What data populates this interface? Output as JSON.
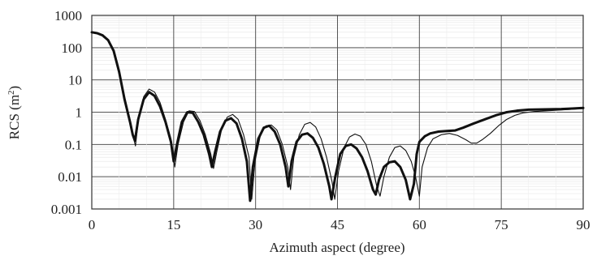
{
  "chart_data": {
    "type": "line",
    "title": "",
    "xlabel": "Azimuth aspect (degree)",
    "ylabel_main": "RCS (m",
    "ylabel_sup": "2",
    "ylabel_close": ")",
    "xlim": [
      0,
      90
    ],
    "ylim": [
      0.001,
      1000
    ],
    "yscale": "log",
    "grid": true,
    "xticks": [
      0,
      15,
      30,
      45,
      60,
      75,
      90
    ],
    "xtick_labels": [
      "0",
      "15",
      "30",
      "45",
      "60",
      "75",
      "90"
    ],
    "yticks": [
      0.001,
      0.01,
      0.1,
      1,
      10,
      100,
      1000
    ],
    "ytick_labels": [
      "0.001",
      "0.01",
      "0.1",
      "1",
      "10",
      "100",
      "1000"
    ],
    "series": [
      {
        "style": "thick",
        "color": "#111111",
        "points": [
          [
            0,
            300
          ],
          [
            1,
            280
          ],
          [
            2,
            240
          ],
          [
            3,
            170
          ],
          [
            4,
            80
          ],
          [
            5,
            18
          ],
          [
            6,
            2.5
          ],
          [
            7,
            0.5
          ],
          [
            7.5,
            0.2
          ],
          [
            7.9,
            0.13
          ],
          [
            8.5,
            0.6
          ],
          [
            9.5,
            2.5
          ],
          [
            10.5,
            4.2
          ],
          [
            11.5,
            3.2
          ],
          [
            12.5,
            1.5
          ],
          [
            13.5,
            0.5
          ],
          [
            14.5,
            0.12
          ],
          [
            15,
            0.03
          ],
          [
            15.6,
            0.1
          ],
          [
            16.5,
            0.5
          ],
          [
            17.5,
            1.0
          ],
          [
            18.5,
            0.95
          ],
          [
            19.5,
            0.5
          ],
          [
            20.5,
            0.2
          ],
          [
            21.5,
            0.05
          ],
          [
            22,
            0.02
          ],
          [
            22.6,
            0.06
          ],
          [
            23.5,
            0.25
          ],
          [
            24.5,
            0.55
          ],
          [
            25.5,
            0.65
          ],
          [
            26.5,
            0.45
          ],
          [
            27.5,
            0.15
          ],
          [
            28.4,
            0.03
          ],
          [
            29,
            0.0018
          ],
          [
            29.5,
            0.02
          ],
          [
            30.5,
            0.15
          ],
          [
            31.5,
            0.33
          ],
          [
            32.5,
            0.38
          ],
          [
            33.5,
            0.25
          ],
          [
            34.5,
            0.1
          ],
          [
            35.5,
            0.02
          ],
          [
            36,
            0.005
          ],
          [
            36.6,
            0.03
          ],
          [
            37.5,
            0.12
          ],
          [
            38.5,
            0.2
          ],
          [
            39.5,
            0.22
          ],
          [
            40.5,
            0.16
          ],
          [
            41.5,
            0.08
          ],
          [
            42.5,
            0.025
          ],
          [
            43.5,
            0.005
          ],
          [
            43.9,
            0.002
          ],
          [
            44.6,
            0.01
          ],
          [
            45.5,
            0.05
          ],
          [
            46.5,
            0.09
          ],
          [
            47.5,
            0.1
          ],
          [
            48.5,
            0.075
          ],
          [
            49.5,
            0.04
          ],
          [
            50.5,
            0.015
          ],
          [
            51.5,
            0.004
          ],
          [
            52,
            0.0028
          ],
          [
            52.6,
            0.008
          ],
          [
            53.5,
            0.02
          ],
          [
            54.5,
            0.028
          ],
          [
            55.5,
            0.03
          ],
          [
            56.5,
            0.02
          ],
          [
            57.5,
            0.008
          ],
          [
            58.3,
            0.002
          ],
          [
            59,
            0.006
          ],
          [
            59.5,
            0.05
          ],
          [
            60,
            0.12
          ],
          [
            61,
            0.18
          ],
          [
            62,
            0.22
          ],
          [
            63.5,
            0.25
          ],
          [
            65,
            0.26
          ],
          [
            66.5,
            0.27
          ],
          [
            68,
            0.33
          ],
          [
            70,
            0.45
          ],
          [
            72,
            0.6
          ],
          [
            74,
            0.8
          ],
          [
            76,
            1.0
          ],
          [
            78,
            1.12
          ],
          [
            80,
            1.2
          ],
          [
            83,
            1.22
          ],
          [
            86,
            1.25
          ],
          [
            88,
            1.3
          ],
          [
            90,
            1.35
          ]
        ]
      },
      {
        "style": "thin",
        "color": "#111111",
        "points": [
          [
            0,
            300
          ],
          [
            1,
            280
          ],
          [
            2,
            240
          ],
          [
            3,
            170
          ],
          [
            4,
            80
          ],
          [
            5,
            20
          ],
          [
            6,
            3
          ],
          [
            7,
            0.6
          ],
          [
            7.5,
            0.2
          ],
          [
            8,
            0.09
          ],
          [
            8.5,
            0.5
          ],
          [
            9.5,
            3
          ],
          [
            10.5,
            5.2
          ],
          [
            11.5,
            4.2
          ],
          [
            12.5,
            2
          ],
          [
            13.5,
            0.6
          ],
          [
            14.5,
            0.15
          ],
          [
            15.2,
            0.02
          ],
          [
            15.8,
            0.1
          ],
          [
            16.8,
            0.5
          ],
          [
            17.8,
            1.1
          ],
          [
            18.8,
            1.05
          ],
          [
            19.8,
            0.55
          ],
          [
            20.8,
            0.2
          ],
          [
            21.8,
            0.05
          ],
          [
            22.3,
            0.018
          ],
          [
            22.9,
            0.06
          ],
          [
            23.8,
            0.3
          ],
          [
            24.8,
            0.7
          ],
          [
            25.8,
            0.85
          ],
          [
            26.8,
            0.6
          ],
          [
            27.8,
            0.2
          ],
          [
            28.8,
            0.04
          ],
          [
            29.3,
            0.002
          ],
          [
            29.9,
            0.03
          ],
          [
            30.9,
            0.2
          ],
          [
            31.9,
            0.38
          ],
          [
            32.9,
            0.4
          ],
          [
            33.9,
            0.28
          ],
          [
            34.9,
            0.1
          ],
          [
            35.9,
            0.02
          ],
          [
            36.4,
            0.004
          ],
          [
            37,
            0.04
          ],
          [
            38,
            0.2
          ],
          [
            39,
            0.42
          ],
          [
            40,
            0.48
          ],
          [
            41,
            0.35
          ],
          [
            42,
            0.15
          ],
          [
            43,
            0.04
          ],
          [
            44,
            0.007
          ],
          [
            44.5,
            0.002
          ],
          [
            45.2,
            0.015
          ],
          [
            46.2,
            0.08
          ],
          [
            47.2,
            0.17
          ],
          [
            48.2,
            0.21
          ],
          [
            49.2,
            0.18
          ],
          [
            50.2,
            0.1
          ],
          [
            51.2,
            0.03
          ],
          [
            52.2,
            0.005
          ],
          [
            52.8,
            0.0025
          ],
          [
            53.5,
            0.01
          ],
          [
            54.5,
            0.04
          ],
          [
            55.5,
            0.08
          ],
          [
            56.5,
            0.09
          ],
          [
            57.5,
            0.065
          ],
          [
            58.5,
            0.03
          ],
          [
            59.3,
            0.01
          ],
          [
            60,
            0.0025
          ],
          [
            60.5,
            0.02
          ],
          [
            61.5,
            0.08
          ],
          [
            62.5,
            0.15
          ],
          [
            64,
            0.2
          ],
          [
            65.5,
            0.22
          ],
          [
            67,
            0.19
          ],
          [
            68.5,
            0.14
          ],
          [
            69.5,
            0.11
          ],
          [
            70.5,
            0.11
          ],
          [
            71.5,
            0.14
          ],
          [
            73,
            0.22
          ],
          [
            74.5,
            0.38
          ],
          [
            76,
            0.6
          ],
          [
            77.5,
            0.8
          ],
          [
            79,
            0.95
          ],
          [
            81,
            1.05
          ],
          [
            84,
            1.12
          ],
          [
            87,
            1.2
          ],
          [
            90,
            1.3
          ]
        ]
      }
    ]
  }
}
